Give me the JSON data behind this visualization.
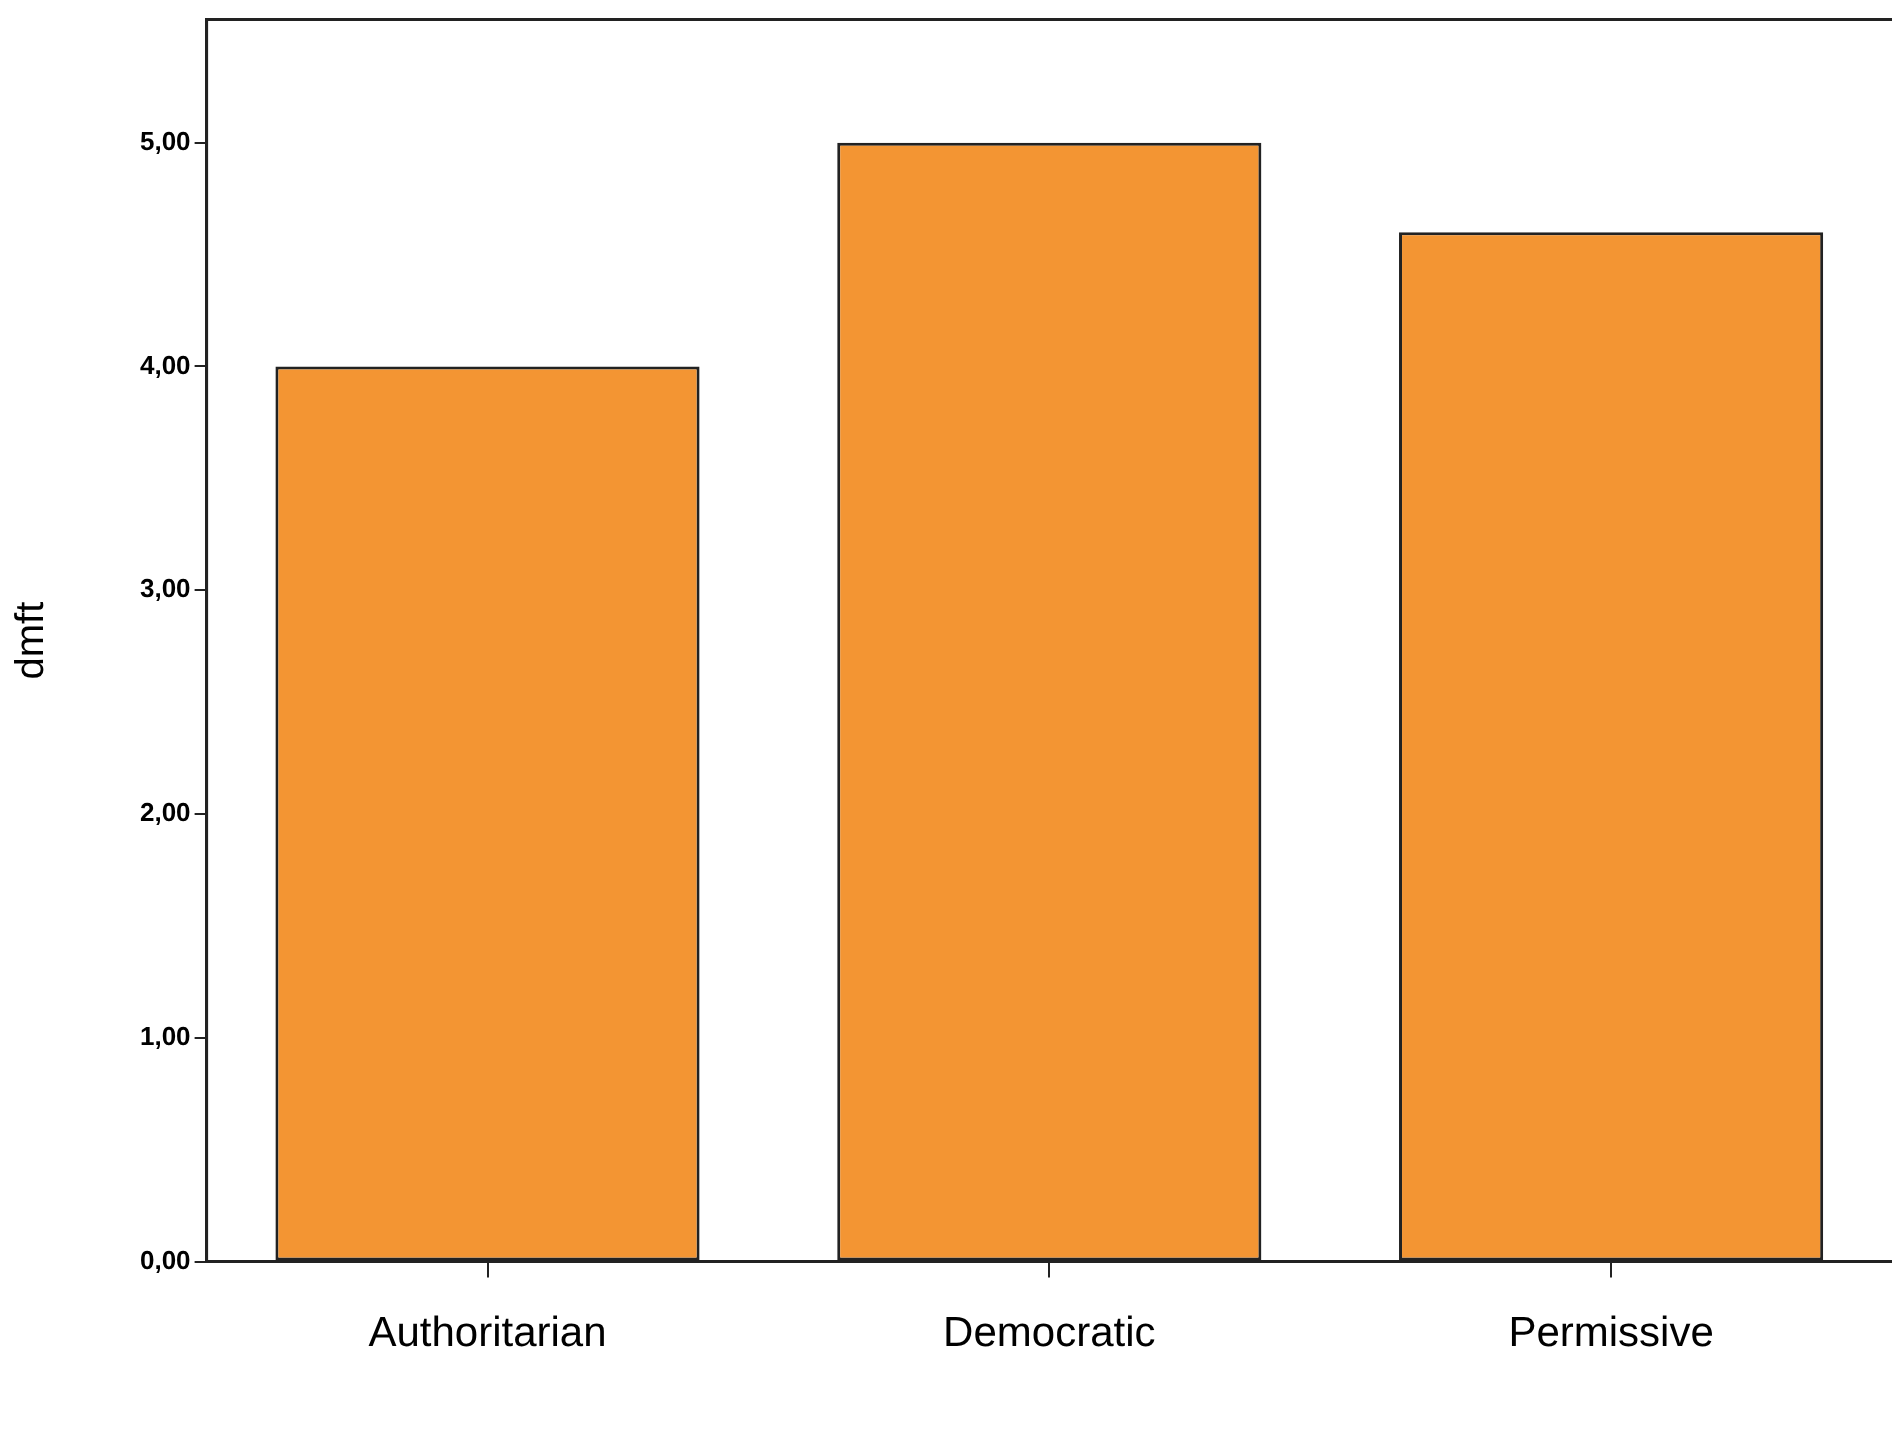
{
  "chart_data": {
    "type": "bar",
    "ylabel": "dmft",
    "categories": [
      "Authoritarian",
      "Democratic",
      "Permissive"
    ],
    "values": [
      4.0,
      5.0,
      4.6
    ],
    "color": "#f39533",
    "ylim": [
      0,
      5.55
    ],
    "yticks": [
      {
        "value": 0,
        "label": "0,00"
      },
      {
        "value": 1,
        "label": "1,00"
      },
      {
        "value": 2,
        "label": "2,00"
      },
      {
        "value": 3,
        "label": "3,00"
      },
      {
        "value": 4,
        "label": "4,00"
      },
      {
        "value": 5,
        "label": "5,00"
      }
    ],
    "grid": false,
    "legend": false
  }
}
